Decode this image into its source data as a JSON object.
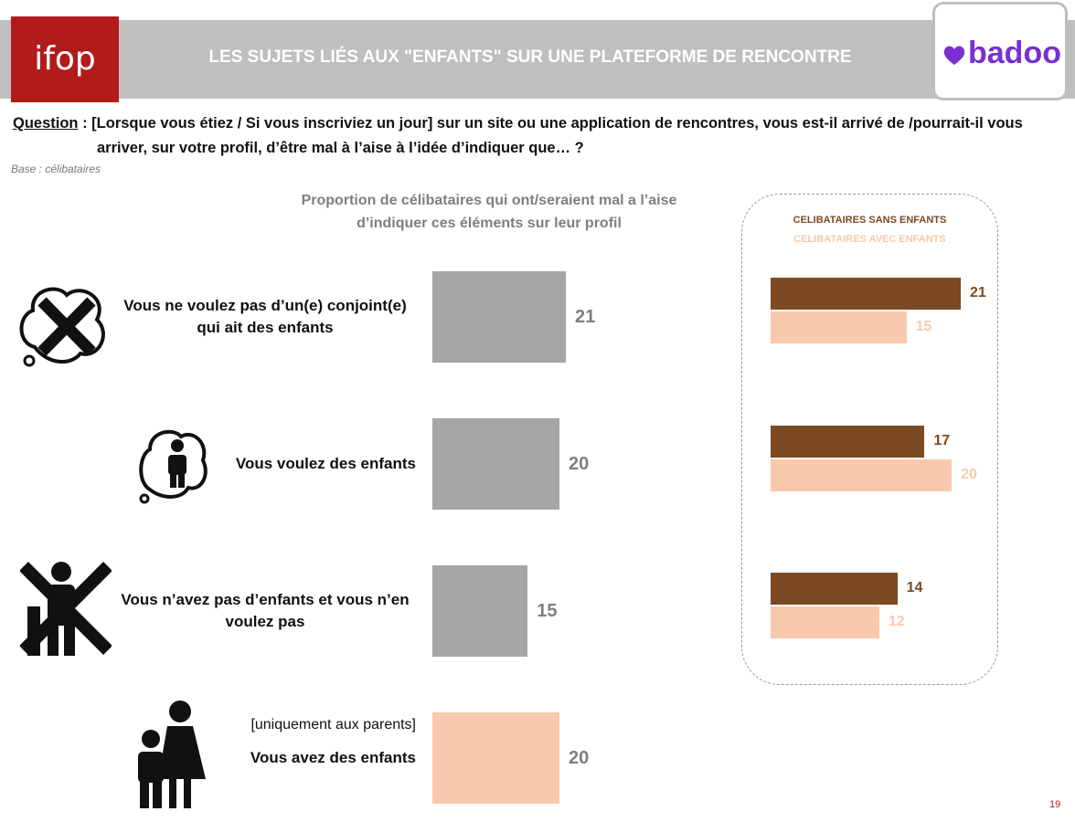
{
  "header": {
    "logo": "ifop",
    "title": "LES SUJETS LIÉS AUX \"ENFANTS\" SUR UNE PLATEFORME DE RENCONTRE",
    "brand": "badoo"
  },
  "question": {
    "label": "Question",
    "text": " : [Lorsque vous étiez / Si vous inscriviez un jour] sur un site ou une application de rencontres, vous est-il arrivé de /pourrait-il vous arriver, sur votre profil, d’être mal à l’aise à l’idée d’indiquer que… ?"
  },
  "base": "Base : célibataires",
  "page_number": "19",
  "chart_data": [
    {
      "type": "bar",
      "orientation": "horizontal",
      "title": "Proportion de célibataires qui ont/seraient mal a l’aise d’indiquer ces éléments sur leur profil",
      "categories": [
        "Vous ne voulez pas d’un(e) conjoint(e) qui ait des enfants",
        "Vous voulez des enfants",
        "Vous n’avez pas d’enfants et vous n’en voulez pas",
        "Vous avez des enfants"
      ],
      "category_notes": [
        null,
        null,
        null,
        "[uniquement aux parents]"
      ],
      "values": [
        21,
        20,
        15,
        20
      ],
      "colors": [
        "#a6a6a6",
        "#a6a6a6",
        "#a6a6a6",
        "#f8c9ad"
      ]
    },
    {
      "type": "grouped_bar",
      "orientation": "horizontal",
      "categories": [
        null,
        null,
        null
      ],
      "series": [
        {
          "name": "CELIBATAIRES SANS ENFANTS",
          "color": "#7b4a22",
          "values": [
            21,
            17,
            14
          ]
        },
        {
          "name": "CELIBATAIRES AVEC ENFANTS",
          "color": "#f8c9ad",
          "values": [
            15,
            20,
            12
          ]
        }
      ]
    }
  ]
}
